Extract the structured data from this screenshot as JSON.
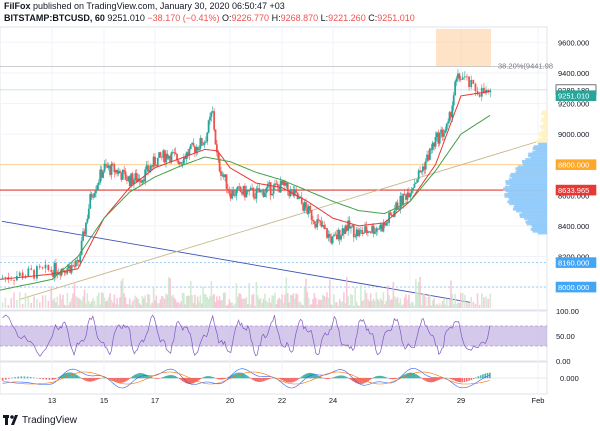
{
  "header": {
    "publisher_line": "FilFox published on TradingView.com, January 30, 2020 06:50:47 +03",
    "publisher": "FilFox",
    "published_rest": " published on TradingView.com, January 30, 2020 06:50:47 +03",
    "symbol": "BITSTAMP:BTCUSD, 60",
    "last": "9251.010",
    "change": "−38.170 (−0.41%)",
    "o_label": "O:",
    "o": "9226.770",
    "h_label": "H:",
    "h": "9268.870",
    "l_label": "L:",
    "l": "9221.260",
    "c_label": "C:",
    "c": "9251.010"
  },
  "footer": {
    "brand": "TradingView"
  },
  "colors": {
    "up": "#26a69a",
    "down": "#ef5350",
    "ema_fast": "#e53935",
    "ema_slow": "#43a047",
    "trend_blue": "#3f51b5",
    "trend_tan": "#c8b98a",
    "rsi_band": "#b39ddb",
    "fib_box": "#ffcc99",
    "volume_profile": "#90caf9"
  },
  "chart_data": {
    "type": "candlestick",
    "price_axis": {
      "ylim": [
        7850,
        9700
      ],
      "ticks": [
        "9600.000",
        "9400.000",
        "9200.000",
        "9000.000",
        "8800.000",
        "8600.000",
        "8400.000",
        "8200.000",
        "8000.000"
      ]
    },
    "x_axis": {
      "ticks": [
        "13",
        "15",
        "17",
        "20",
        "22",
        "24",
        "27",
        "29",
        "Feb"
      ]
    },
    "price_labels": [
      {
        "text": "9289.180",
        "color": "#131722",
        "bg": "#ffffff",
        "value": 9289.18
      },
      {
        "text": "9251.010",
        "color": "#ffffff",
        "bg": "#26a69a",
        "value": 9251.01
      },
      {
        "text": "8800.000",
        "color": "#ffffff",
        "bg": "#ffa726",
        "value": 8800
      },
      {
        "text": "8633.965",
        "color": "#ffffff",
        "bg": "#e53935",
        "value": 8633.965
      },
      {
        "text": "8160.000",
        "color": "#ffffff",
        "bg": "#42a5f5",
        "value": 8160
      },
      {
        "text": "8000.000",
        "color": "#ffffff",
        "bg": "#42a5f5",
        "value": 8000
      }
    ],
    "fib_label": "38.20%(9441.98",
    "fib_level": 9441.98,
    "horizontal_lines": [
      {
        "value": 8633.965,
        "color": "#e53935"
      },
      {
        "value": 8800,
        "color": "#ffcc80"
      },
      {
        "value": 8160,
        "color": "#90caf9"
      },
      {
        "value": 8000,
        "color": "#90caf9"
      },
      {
        "value": 9289.18,
        "color": "#b2dfdb"
      }
    ],
    "close_path": [
      [
        12,
        8060
      ],
      [
        13,
        8110
      ],
      [
        14,
        8140
      ],
      [
        14.5,
        8600
      ],
      [
        15,
        8780
      ],
      [
        15.5,
        8760
      ],
      [
        16,
        8700
      ],
      [
        16.5,
        8720
      ],
      [
        17,
        8820
      ],
      [
        17.5,
        8870
      ],
      [
        18,
        8830
      ],
      [
        18.5,
        8900
      ],
      [
        19,
        8960
      ],
      [
        19.3,
        9150
      ],
      [
        19.5,
        8820
      ],
      [
        20,
        8620
      ],
      [
        20.5,
        8620
      ],
      [
        21,
        8610
      ],
      [
        21.5,
        8640
      ],
      [
        22,
        8660
      ],
      [
        22.5,
        8600
      ],
      [
        23,
        8500
      ],
      [
        23.5,
        8400
      ],
      [
        24,
        8300
      ],
      [
        24.5,
        8400
      ],
      [
        25,
        8350
      ],
      [
        25.5,
        8380
      ],
      [
        26,
        8400
      ],
      [
        26.5,
        8530
      ],
      [
        27,
        8640
      ],
      [
        27.5,
        8780
      ],
      [
        28,
        8960
      ],
      [
        28.5,
        9050
      ],
      [
        28.8,
        9340
      ],
      [
        29,
        9380
      ],
      [
        29.3,
        9300
      ],
      [
        29.6,
        9270
      ],
      [
        29.8,
        9251
      ]
    ],
    "ema_fast_path": [
      [
        12,
        8050
      ],
      [
        14,
        8120
      ],
      [
        15,
        8450
      ],
      [
        16,
        8650
      ],
      [
        17,
        8780
      ],
      [
        18,
        8840
      ],
      [
        19,
        8900
      ],
      [
        19.5,
        8890
      ],
      [
        20,
        8780
      ],
      [
        21,
        8680
      ],
      [
        22,
        8650
      ],
      [
        23,
        8560
      ],
      [
        24,
        8450
      ],
      [
        25,
        8400
      ],
      [
        26,
        8420
      ],
      [
        27,
        8560
      ],
      [
        28,
        8800
      ],
      [
        29,
        9250
      ],
      [
        29.8,
        9280
      ]
    ],
    "ema_slow_path": [
      [
        12,
        7980
      ],
      [
        13,
        8050
      ],
      [
        14,
        8200
      ],
      [
        15,
        8450
      ],
      [
        16,
        8620
      ],
      [
        17,
        8720
      ],
      [
        18,
        8790
      ],
      [
        19,
        8850
      ],
      [
        20,
        8820
      ],
      [
        21,
        8750
      ],
      [
        22,
        8700
      ],
      [
        23,
        8630
      ],
      [
        24,
        8560
      ],
      [
        25,
        8500
      ],
      [
        26,
        8480
      ],
      [
        27,
        8560
      ],
      [
        28,
        8760
      ],
      [
        29,
        9000
      ],
      [
        29.8,
        9130
      ]
    ],
    "rsi": {
      "ticks": [
        "100.00",
        "50.00",
        "0.00"
      ],
      "band": [
        30,
        70
      ]
    },
    "macd": {
      "ticks": [
        "0.000"
      ]
    }
  }
}
